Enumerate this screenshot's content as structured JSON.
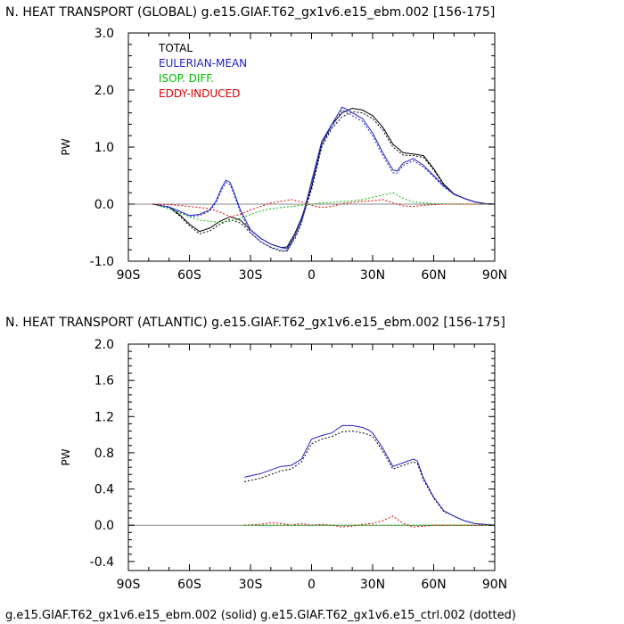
{
  "footer": "g.e15.GIAF.T62_gx1v6.e15_ebm.002 (solid) g.e15.GIAF.T62_gx1v6.e15_ctrl.002 (dotted)",
  "chart_data": [
    {
      "type": "line",
      "title": "N. HEAT TRANSPORT (GLOBAL) g.e15.GIAF.T62_gx1v6.e15_ebm.002 [156-175]",
      "ylabel": "PW",
      "xlabel": "",
      "xlim": [
        -90,
        90
      ],
      "ylim": [
        -1.0,
        3.0
      ],
      "xticks": [
        -90,
        -60,
        -30,
        0,
        30,
        60,
        90
      ],
      "xtick_labels": [
        "90S",
        "60S",
        "30S",
        "0",
        "30N",
        "60N",
        "90N"
      ],
      "yticks": [
        -1.0,
        0.0,
        1.0,
        2.0,
        3.0
      ],
      "ytick_labels": [
        "-1.0",
        "0.0",
        "1.0",
        "2.0",
        "3.0"
      ],
      "grid": false,
      "zero_line": true,
      "legend_position": "top-left",
      "legend": [
        {
          "label": "TOTAL",
          "color": "#000000"
        },
        {
          "label": "EULERIAN-MEAN",
          "color": "#2222cc"
        },
        {
          "label": "ISOP. DIFF.",
          "color": "#00bb00"
        },
        {
          "label": "EDDY-INDUCED",
          "color": "#dd0000"
        }
      ],
      "series": [
        {
          "name": "TOTAL",
          "style": "solid",
          "color": "#000000",
          "x": [
            -78,
            -70,
            -65,
            -60,
            -55,
            -50,
            -45,
            -40,
            -35,
            -30,
            -25,
            -20,
            -15,
            -12,
            -8,
            -5,
            0,
            5,
            10,
            15,
            20,
            25,
            30,
            35,
            40,
            45,
            50,
            55,
            60,
            65,
            70,
            75,
            80,
            85,
            90
          ],
          "y": [
            0,
            -0.05,
            -0.18,
            -0.35,
            -0.48,
            -0.42,
            -0.3,
            -0.22,
            -0.28,
            -0.45,
            -0.6,
            -0.7,
            -0.76,
            -0.75,
            -0.5,
            -0.25,
            0.3,
            1.05,
            1.4,
            1.6,
            1.68,
            1.65,
            1.55,
            1.35,
            1.05,
            0.9,
            0.88,
            0.85,
            0.62,
            0.35,
            0.18,
            0.1,
            0.04,
            0.01,
            0
          ]
        },
        {
          "name": "TOTAL",
          "style": "dotted",
          "color": "#000000",
          "x": [
            -78,
            -70,
            -65,
            -60,
            -55,
            -50,
            -45,
            -40,
            -35,
            -30,
            -25,
            -20,
            -15,
            -12,
            -8,
            -5,
            0,
            5,
            10,
            15,
            20,
            25,
            30,
            35,
            40,
            45,
            50,
            55,
            60,
            65,
            70,
            75,
            80,
            85,
            90
          ],
          "y": [
            0,
            -0.06,
            -0.2,
            -0.38,
            -0.52,
            -0.47,
            -0.35,
            -0.27,
            -0.33,
            -0.5,
            -0.66,
            -0.76,
            -0.83,
            -0.82,
            -0.56,
            -0.3,
            0.25,
            1.0,
            1.33,
            1.53,
            1.62,
            1.6,
            1.5,
            1.3,
            1.0,
            0.86,
            0.85,
            0.82,
            0.6,
            0.33,
            0.17,
            0.1,
            0.04,
            0.01,
            0
          ]
        },
        {
          "name": "EULERIAN-MEAN",
          "style": "solid",
          "color": "#2222cc",
          "x": [
            -78,
            -70,
            -65,
            -60,
            -55,
            -50,
            -47,
            -44,
            -42,
            -40,
            -38,
            -35,
            -30,
            -25,
            -20,
            -15,
            -12,
            -8,
            -5,
            0,
            5,
            10,
            15,
            18,
            20,
            25,
            30,
            35,
            40,
            42,
            45,
            50,
            55,
            60,
            65,
            70,
            75,
            80,
            85,
            90
          ],
          "y": [
            0,
            -0.05,
            -0.12,
            -0.2,
            -0.18,
            -0.1,
            0.05,
            0.3,
            0.42,
            0.38,
            0.2,
            -0.1,
            -0.45,
            -0.6,
            -0.7,
            -0.76,
            -0.78,
            -0.55,
            -0.3,
            0.4,
            1.1,
            1.4,
            1.7,
            1.65,
            1.6,
            1.5,
            1.25,
            0.9,
            0.6,
            0.58,
            0.72,
            0.8,
            0.68,
            0.5,
            0.32,
            0.18,
            0.1,
            0.04,
            0.01,
            0
          ]
        },
        {
          "name": "EULERIAN-MEAN",
          "style": "dotted",
          "color": "#2222cc",
          "x": [
            -78,
            -70,
            -65,
            -60,
            -55,
            -50,
            -47,
            -44,
            -42,
            -40,
            -38,
            -35,
            -30,
            -25,
            -20,
            -15,
            -12,
            -8,
            -5,
            0,
            5,
            10,
            15,
            18,
            20,
            25,
            30,
            35,
            40,
            42,
            45,
            50,
            55,
            60,
            65,
            70,
            75,
            80,
            85,
            90
          ],
          "y": [
            0,
            -0.06,
            -0.14,
            -0.22,
            -0.2,
            -0.12,
            0.02,
            0.26,
            0.38,
            0.34,
            0.16,
            -0.14,
            -0.5,
            -0.66,
            -0.76,
            -0.8,
            -0.82,
            -0.6,
            -0.35,
            0.35,
            1.05,
            1.35,
            1.65,
            1.6,
            1.55,
            1.45,
            1.2,
            0.85,
            0.55,
            0.54,
            0.68,
            0.76,
            0.65,
            0.48,
            0.3,
            0.17,
            0.1,
            0.04,
            0.01,
            0
          ]
        },
        {
          "name": "ISOP. DIFF.",
          "style": "dotted",
          "color": "#00bb00",
          "x": [
            -78,
            -70,
            -65,
            -60,
            -55,
            -50,
            -45,
            -40,
            -35,
            -30,
            -25,
            -20,
            -15,
            -10,
            -5,
            0,
            5,
            10,
            15,
            20,
            25,
            30,
            35,
            40,
            45,
            50,
            55,
            60,
            65,
            70,
            75,
            80,
            85,
            90
          ],
          "y": [
            0,
            -0.08,
            -0.15,
            -0.22,
            -0.28,
            -0.3,
            -0.32,
            -0.3,
            -0.25,
            -0.18,
            -0.12,
            -0.08,
            -0.06,
            -0.04,
            -0.02,
            0.0,
            0.02,
            0.03,
            0.04,
            0.06,
            0.08,
            0.12,
            0.16,
            0.2,
            0.1,
            0.04,
            0.02,
            0.01,
            0.0,
            0.0,
            0.0,
            0.0,
            0.0,
            0
          ]
        },
        {
          "name": "EDDY-INDUCED",
          "style": "dotted",
          "color": "#dd0000",
          "x": [
            -78,
            -70,
            -65,
            -60,
            -55,
            -50,
            -45,
            -40,
            -35,
            -30,
            -25,
            -20,
            -15,
            -10,
            -5,
            0,
            5,
            10,
            15,
            20,
            25,
            30,
            35,
            40,
            45,
            50,
            55,
            60,
            65,
            70,
            75,
            80,
            85,
            90
          ],
          "y": [
            0,
            -0.01,
            -0.02,
            -0.04,
            -0.06,
            -0.08,
            -0.14,
            -0.22,
            -0.18,
            -0.1,
            -0.04,
            0.02,
            0.05,
            0.08,
            0.04,
            -0.02,
            -0.06,
            -0.04,
            0.01,
            0.03,
            0.05,
            0.06,
            0.08,
            0.02,
            -0.03,
            -0.04,
            -0.02,
            -0.01,
            0.0,
            0.0,
            0.0,
            0.0,
            0.0,
            0
          ]
        }
      ]
    },
    {
      "type": "line",
      "title": "N. HEAT TRANSPORT (ATLANTIC) g.e15.GIAF.T62_gx1v6.e15_ebm.002 [156-175]",
      "ylabel": "PW",
      "xlabel": "",
      "xlim": [
        -90,
        90
      ],
      "ylim": [
        -0.5,
        2.0
      ],
      "xticks": [
        -90,
        -60,
        -30,
        0,
        30,
        60,
        90
      ],
      "xtick_labels": [
        "90S",
        "60S",
        "30S",
        "0",
        "30N",
        "60N",
        "90N"
      ],
      "yticks": [
        -0.4,
        0.0,
        0.4,
        0.8,
        1.2,
        1.6,
        2.0
      ],
      "ytick_labels": [
        "-0.4",
        "0.0",
        "0.4",
        "0.8",
        "1.2",
        "1.6",
        "2.0"
      ],
      "grid": false,
      "zero_line": true,
      "series": [
        {
          "name": "TOTAL",
          "style": "dotted",
          "color": "#000000",
          "x": [
            -33,
            -25,
            -20,
            -15,
            -10,
            -5,
            0,
            5,
            10,
            15,
            20,
            25,
            28,
            30,
            35,
            40,
            45,
            50,
            52,
            55,
            60,
            65,
            70,
            75,
            80,
            85,
            90
          ],
          "y": [
            0.48,
            0.52,
            0.56,
            0.6,
            0.62,
            0.7,
            0.9,
            0.95,
            0.98,
            1.03,
            1.04,
            1.02,
            1.0,
            0.98,
            0.82,
            0.62,
            0.66,
            0.7,
            0.68,
            0.5,
            0.3,
            0.15,
            0.1,
            0.05,
            0.02,
            0.01,
            0
          ]
        },
        {
          "name": "EULERIAN-MEAN",
          "style": "solid",
          "color": "#2222cc",
          "x": [
            -33,
            -25,
            -20,
            -15,
            -10,
            -5,
            0,
            5,
            10,
            15,
            20,
            25,
            28,
            30,
            35,
            40,
            45,
            50,
            52,
            55,
            60,
            65,
            70,
            75,
            80,
            85,
            90
          ],
          "y": [
            0.53,
            0.57,
            0.61,
            0.65,
            0.66,
            0.73,
            0.95,
            0.99,
            1.02,
            1.1,
            1.1,
            1.08,
            1.05,
            1.02,
            0.85,
            0.65,
            0.69,
            0.73,
            0.71,
            0.52,
            0.31,
            0.16,
            0.1,
            0.05,
            0.02,
            0.01,
            0
          ]
        },
        {
          "name": "EDDY-INDUCED",
          "style": "dotted",
          "color": "#dd0000",
          "x": [
            -33,
            -25,
            -20,
            -15,
            -10,
            -5,
            0,
            5,
            10,
            15,
            20,
            25,
            30,
            35,
            40,
            45,
            50,
            55,
            60,
            65,
            70,
            75,
            80,
            85,
            90
          ],
          "y": [
            0.0,
            0.01,
            0.03,
            0.02,
            0.0,
            0.02,
            0.0,
            0.01,
            0.0,
            -0.02,
            -0.01,
            0.01,
            0.02,
            0.05,
            0.1,
            0.02,
            -0.02,
            -0.01,
            0.0,
            0.0,
            0.0,
            0.0,
            0.0,
            0.0,
            0
          ]
        },
        {
          "name": "ISOP. DIFF.",
          "style": "dotted",
          "color": "#00bb00",
          "x": [
            -33,
            -25,
            -20,
            -15,
            -10,
            -5,
            0,
            5,
            10,
            15,
            20,
            25,
            30,
            35,
            40,
            45,
            50,
            55,
            60,
            65,
            70,
            75,
            80,
            85,
            90
          ],
          "y": [
            0.0,
            0.0,
            0.0,
            0.0,
            0.0,
            0.0,
            0.0,
            0.0,
            0.0,
            0.0,
            0.0,
            0.0,
            0.0,
            0.0,
            0.0,
            0.0,
            0.0,
            0.0,
            0.0,
            0.0,
            0.0,
            0.0,
            0.0,
            0.0,
            0
          ]
        }
      ]
    }
  ]
}
